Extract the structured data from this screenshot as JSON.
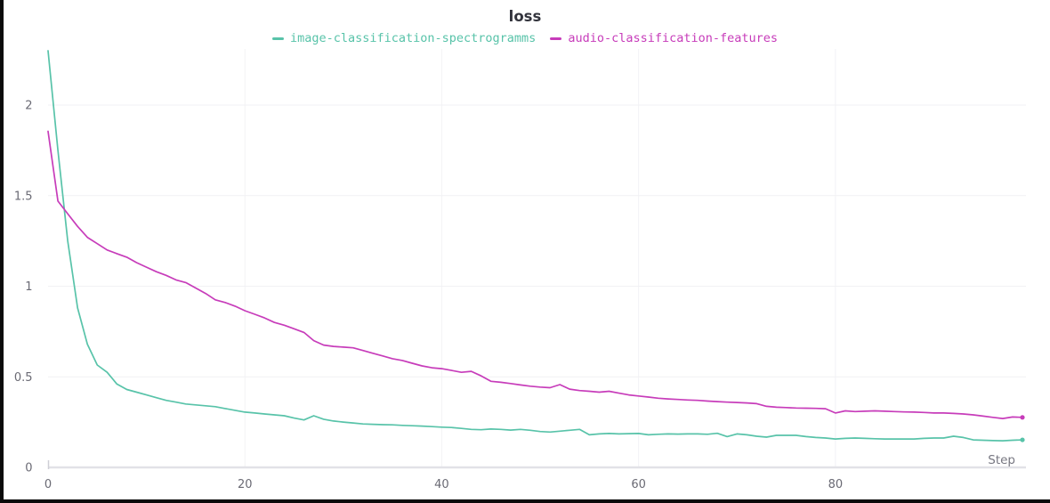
{
  "panel": {
    "title": "loss",
    "x_axis_label": "Step"
  },
  "colors": {
    "series_teal": "#58c3a9",
    "series_magenta": "#c73cba",
    "title_text": "#33343d",
    "tick_text": "#6a6a74",
    "step_label_text": "#777781",
    "grid_horizontal": "#f1f1f4",
    "grid_vertical": "#f3f3f6",
    "axis_line": "#e2e2e7",
    "tick_mark": "#cfcfd6",
    "screen_edge": "#0a0a0a",
    "background": "#ffffff"
  },
  "chart_data": {
    "type": "line",
    "title": "loss",
    "xlabel": "Step",
    "ylabel": "",
    "xlim": [
      0,
      99
    ],
    "ylim": [
      0,
      2.3
    ],
    "x_ticks": [
      0,
      20,
      40,
      60,
      80
    ],
    "y_ticks": [
      0,
      0.5,
      1,
      1.5,
      2
    ],
    "grid": true,
    "legend_position": "top-center",
    "end_point_markers": true,
    "series": [
      {
        "name": "image-classification-spectrogramms",
        "color": "#58c3a9",
        "x_start": 0,
        "x_step": 1,
        "values": [
          2.3,
          1.75,
          1.25,
          0.88,
          0.68,
          0.565,
          0.525,
          0.46,
          0.43,
          0.415,
          0.4,
          0.385,
          0.37,
          0.36,
          0.35,
          0.345,
          0.34,
          0.335,
          0.325,
          0.315,
          0.305,
          0.3,
          0.295,
          0.29,
          0.285,
          0.272,
          0.262,
          0.285,
          0.266,
          0.256,
          0.25,
          0.245,
          0.24,
          0.238,
          0.236,
          0.235,
          0.232,
          0.23,
          0.228,
          0.225,
          0.222,
          0.22,
          0.215,
          0.21,
          0.208,
          0.212,
          0.21,
          0.206,
          0.21,
          0.205,
          0.198,
          0.195,
          0.2,
          0.205,
          0.21,
          0.18,
          0.185,
          0.187,
          0.185,
          0.186,
          0.187,
          0.18,
          0.183,
          0.185,
          0.184,
          0.185,
          0.185,
          0.183,
          0.188,
          0.17,
          0.185,
          0.18,
          0.172,
          0.167,
          0.177,
          0.177,
          0.177,
          0.17,
          0.165,
          0.162,
          0.157,
          0.16,
          0.162,
          0.16,
          0.158,
          0.157,
          0.157,
          0.157,
          0.157,
          0.16,
          0.162,
          0.162,
          0.172,
          0.165,
          0.152,
          0.15,
          0.148,
          0.147,
          0.15,
          0.152
        ]
      },
      {
        "name": "audio-classification-features",
        "color": "#c73cba",
        "x_start": 0,
        "x_step": 1,
        "values": [
          1.855,
          1.47,
          1.4,
          1.33,
          1.27,
          1.235,
          1.2,
          1.18,
          1.16,
          1.13,
          1.105,
          1.08,
          1.06,
          1.035,
          1.02,
          0.99,
          0.96,
          0.925,
          0.91,
          0.89,
          0.865,
          0.845,
          0.825,
          0.8,
          0.785,
          0.765,
          0.745,
          0.7,
          0.675,
          0.668,
          0.664,
          0.66,
          0.645,
          0.63,
          0.615,
          0.6,
          0.59,
          0.575,
          0.56,
          0.55,
          0.545,
          0.535,
          0.525,
          0.53,
          0.505,
          0.475,
          0.47,
          0.463,
          0.455,
          0.448,
          0.443,
          0.44,
          0.457,
          0.432,
          0.424,
          0.42,
          0.415,
          0.42,
          0.41,
          0.4,
          0.394,
          0.388,
          0.382,
          0.378,
          0.375,
          0.372,
          0.37,
          0.366,
          0.363,
          0.36,
          0.358,
          0.356,
          0.352,
          0.337,
          0.332,
          0.33,
          0.328,
          0.327,
          0.326,
          0.324,
          0.3,
          0.312,
          0.308,
          0.31,
          0.312,
          0.31,
          0.308,
          0.306,
          0.305,
          0.303,
          0.3,
          0.3,
          0.298,
          0.295,
          0.29,
          0.283,
          0.276,
          0.27,
          0.278,
          0.276
        ]
      }
    ]
  }
}
